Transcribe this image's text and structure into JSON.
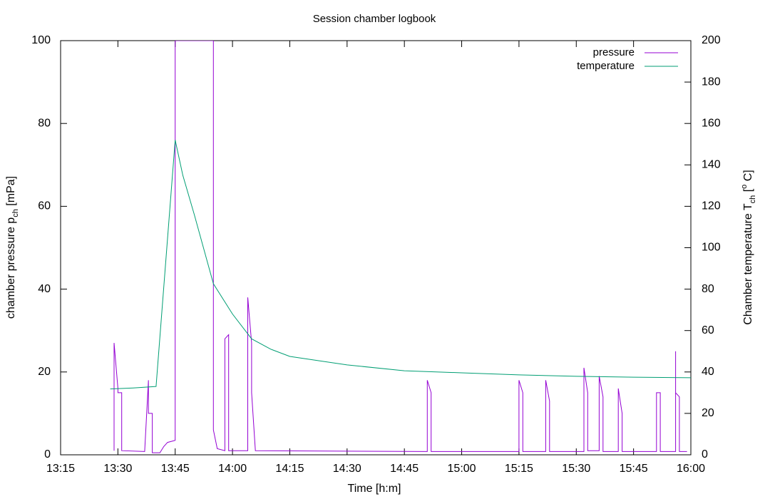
{
  "chart_data": {
    "type": "line",
    "title": "Session chamber logbook",
    "xlabel": "Time [h:m]",
    "ylabel": [
      {
        "text": "chamber pressure p"
      },
      {
        "text": "ch",
        "sub": true
      },
      {
        "text": " [mPa]"
      }
    ],
    "y2label": [
      {
        "text": "Chamber temperature T"
      },
      {
        "text": "ch",
        "sub": true
      },
      {
        "text": " ["
      },
      {
        "text": "o",
        "sup": true
      },
      {
        "text": " C]"
      }
    ],
    "xlim": [
      "13:15",
      "16:00"
    ],
    "xticks": [
      "13:15",
      "13:30",
      "13:45",
      "14:00",
      "14:15",
      "14:30",
      "14:45",
      "15:00",
      "15:15",
      "15:30",
      "15:45",
      "16:00"
    ],
    "ylim": [
      0,
      100
    ],
    "yticks": [
      0,
      20,
      40,
      60,
      80,
      100
    ],
    "y2lim": [
      0,
      200
    ],
    "y2ticks": [
      0,
      20,
      40,
      60,
      80,
      100,
      120,
      140,
      160,
      180,
      200
    ],
    "legend": "top-right",
    "series": [
      {
        "name": "pressure",
        "color": "#9400d3",
        "axis": "y",
        "x": [
          "13:29",
          "13:29",
          "13:30",
          "13:30",
          "13:31",
          "13:31",
          "13:37",
          "13:38",
          "13:38",
          "13:39",
          "13:39",
          "13:41",
          "13:42",
          "13:43",
          "13:45",
          "13:45",
          "13:55",
          "13:55",
          "13:56",
          "13:58",
          "13:58",
          "13:59",
          "13:59",
          "14:04",
          "14:04",
          "14:05",
          "14:05",
          "14:06",
          "14:51",
          "14:51",
          "14:52",
          "14:52",
          "15:15",
          "15:15",
          "15:16",
          "15:16",
          "15:22",
          "15:22",
          "15:23",
          "15:23",
          "15:32",
          "15:32",
          "15:33",
          "15:33",
          "15:36",
          "15:36",
          "15:37",
          "15:37",
          "15:41",
          "15:41",
          "15:42",
          "15:42",
          "15:51",
          "15:51",
          "15:52",
          "15:52",
          "15:56",
          "15:56",
          "15:56",
          "15:57",
          "15:57",
          "15:59"
        ],
        "values": [
          1,
          27,
          16,
          15,
          15,
          1,
          0.8,
          18,
          10,
          10,
          0.5,
          0.5,
          2,
          3,
          3.5,
          100,
          100,
          6,
          1.5,
          1,
          28,
          29,
          1,
          1,
          38,
          27,
          15,
          1,
          0.8,
          18,
          15,
          0.8,
          0.8,
          18,
          15,
          0.8,
          0.8,
          18,
          13,
          0.8,
          0.8,
          21,
          15,
          1,
          1,
          19,
          14,
          0.8,
          0.8,
          16,
          10,
          0.8,
          0.8,
          15,
          15,
          0.8,
          0.8,
          25,
          15,
          14,
          0.8,
          0.8
        ]
      },
      {
        "name": "temperature",
        "color": "#009e73",
        "axis": "y2",
        "x": [
          "13:28",
          "13:34",
          "13:40",
          "13:45",
          "13:47",
          "13:50",
          "13:55",
          "14:00",
          "14:05",
          "14:10",
          "14:15",
          "14:30",
          "14:45",
          "15:00",
          "15:15",
          "15:30",
          "15:45",
          "16:00"
        ],
        "values": [
          31.8,
          32.3,
          33,
          152,
          135,
          116,
          82.6,
          68,
          56,
          51,
          47.5,
          43.4,
          40.6,
          39.6,
          38.6,
          37.9,
          37.5,
          37.2
        ]
      }
    ]
  }
}
